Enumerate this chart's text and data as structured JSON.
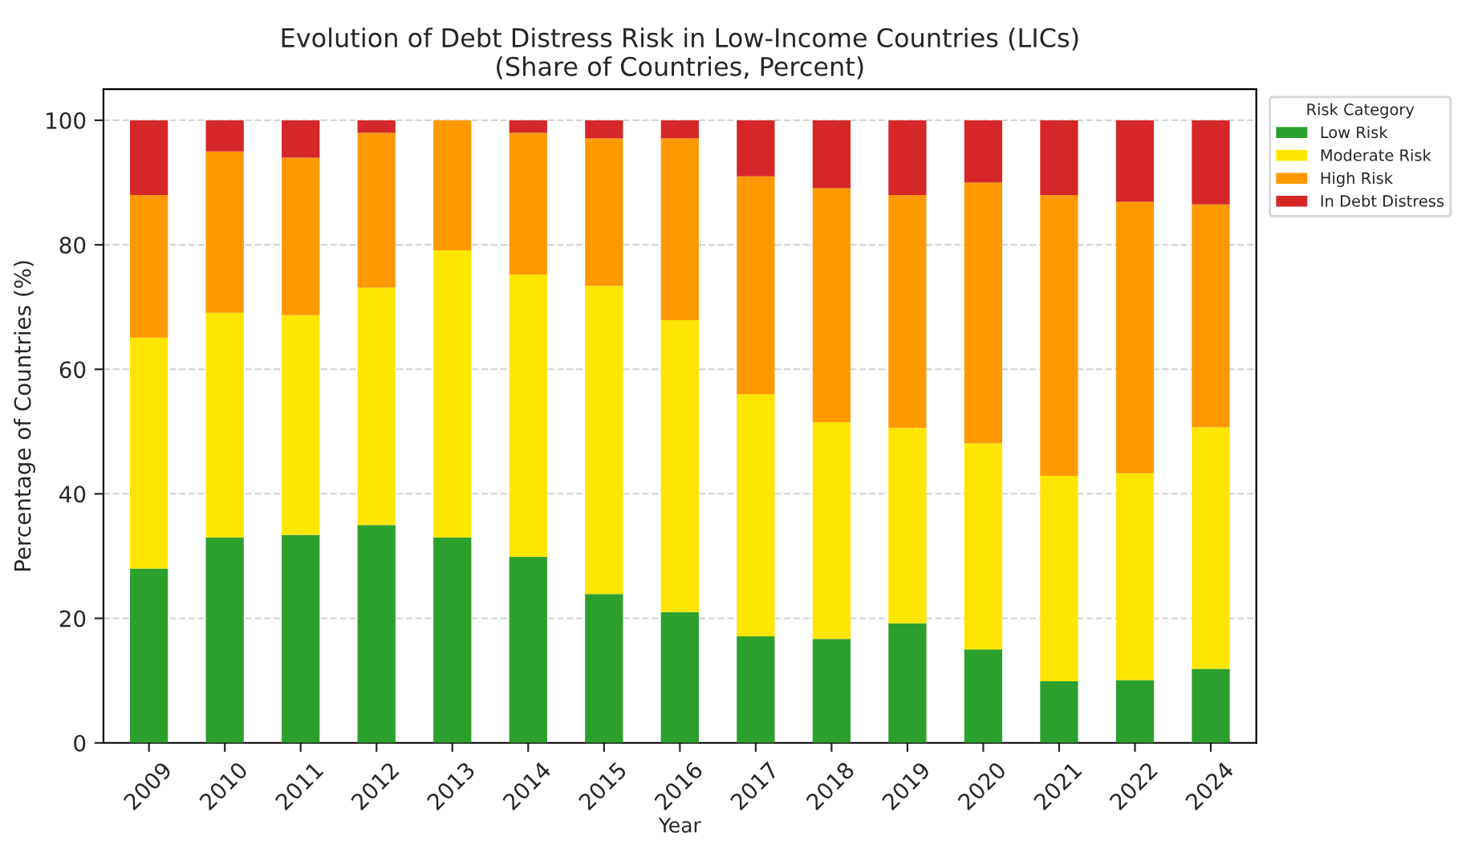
{
  "chart_data": {
    "type": "bar",
    "stacked": true,
    "title": "Evolution of Debt Distress Risk in Low-Income Countries (LICs)\n(Share of Countries, Percent)",
    "xlabel": "Year",
    "ylabel": "Percentage of Countries (%)",
    "legend_title": "Risk Category",
    "categories": [
      "2009",
      "2010",
      "2011",
      "2012",
      "2013",
      "2014",
      "2015",
      "2016",
      "2017",
      "2018",
      "2019",
      "2020",
      "2021",
      "2022",
      "2024"
    ],
    "series": [
      {
        "name": "Low Risk",
        "color": "#2ca02c",
        "values": [
          28,
          33,
          33.4,
          35,
          33,
          29.9,
          23.9,
          21,
          17.1,
          16.7,
          19.2,
          15,
          9.9,
          10.1,
          11.9
        ]
      },
      {
        "name": "Moderate Risk",
        "color": "#ffe600",
        "values": [
          37.1,
          36.1,
          35.3,
          38.1,
          46.1,
          45.3,
          49.5,
          46.9,
          38.9,
          34.8,
          31.4,
          33.1,
          33,
          33.2,
          38.8
        ]
      },
      {
        "name": "High Risk",
        "color": "#ff9900",
        "values": [
          22.9,
          25.9,
          25.3,
          24.9,
          20.9,
          22.8,
          23.7,
          29.2,
          35,
          37.6,
          37.4,
          41.9,
          45.1,
          43.6,
          35.8
        ]
      },
      {
        "name": "In Debt Distress",
        "color": "#d62728",
        "values": [
          12,
          5,
          6,
          2,
          0,
          2,
          2.9,
          2.9,
          9,
          10.9,
          12,
          10,
          12,
          13.1,
          13.5
        ]
      }
    ],
    "ylim": [
      0,
      105
    ],
    "yticks": [
      0,
      20,
      40,
      60,
      80,
      100
    ],
    "grid": "y",
    "legend": "top right"
  }
}
